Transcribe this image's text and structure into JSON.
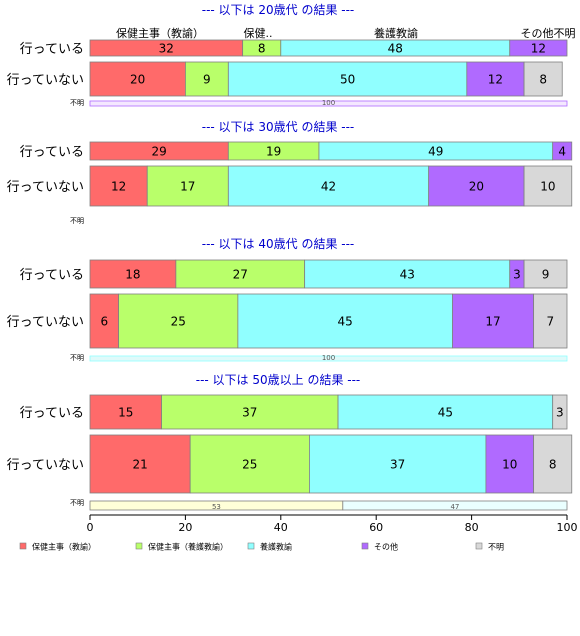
{
  "chart_data": {
    "type": "bar",
    "orientation": "horizontal-stacked-percent",
    "xlim": [
      0,
      100
    ],
    "x_ticks": [
      "0",
      "20",
      "40",
      "60",
      "80",
      "100"
    ],
    "colors": {
      "kenko_kyoyu": "#ff6a6a",
      "kenko_yogo": "#b9ff6a",
      "yogo": "#90ffff",
      "sonota": "#b06aff",
      "fumei": "#d8d8d8",
      "unknown_bar1": "#f4e8ff",
      "unknown_bar2": "#dffafa",
      "unknown_bar3a": "#ffffd8",
      "unknown_bar3b": "#eaffff",
      "title": "#0000cc",
      "edge": "#808080"
    },
    "legend": {
      "placement": "bottom",
      "items": [
        {
          "key": "kenko_kyoyu",
          "label": "保健主事（教諭）"
        },
        {
          "key": "kenko_yogo",
          "label": "保健主事（養護教諭）"
        },
        {
          "key": "yogo",
          "label": "養護教諭"
        },
        {
          "key": "sonota",
          "label": "その他"
        },
        {
          "key": "fumei",
          "label": "不明"
        }
      ]
    },
    "top_labels": [
      "保健主事（教諭）",
      "保健..",
      "養護教諭",
      "その他不明"
    ],
    "panels": [
      {
        "title": "--- 以下は 20歳代 の結果 ---",
        "rows": [
          {
            "label": "行っている",
            "values": [
              32,
              8,
              48,
              12,
              0
            ],
            "labels": [
              "32",
              "8",
              "48",
              "12",
              ""
            ]
          },
          {
            "label": "行っていない",
            "values": [
              20,
              9,
              50,
              12,
              8
            ],
            "labels": [
              "20",
              "9",
              "50",
              "12",
              "8"
            ]
          }
        ],
        "unknown": {
          "label": "不明",
          "segments": [
            {
              "value": 100,
              "label": "100",
              "color": "unknown_bar1",
              "border": "sonota"
            }
          ]
        }
      },
      {
        "title": "--- 以下は 30歳代 の結果 ---",
        "rows": [
          {
            "label": "行っている",
            "values": [
              29,
              19,
              49,
              4,
              0
            ],
            "labels": [
              "29",
              "19",
              "49",
              "4",
              ""
            ]
          },
          {
            "label": "行っていない",
            "values": [
              12,
              17,
              42,
              20,
              10
            ],
            "labels": [
              "12",
              "17",
              "42",
              "20",
              "10"
            ]
          }
        ],
        "unknown": {
          "label": "不明",
          "segments": []
        }
      },
      {
        "title": "--- 以下は 40歳代 の結果 ---",
        "rows": [
          {
            "label": "行っている",
            "values": [
              18,
              27,
              43,
              3,
              9
            ],
            "labels": [
              "18",
              "27",
              "43",
              "3",
              "9"
            ]
          },
          {
            "label": "行っていない",
            "values": [
              6,
              25,
              45,
              17,
              7
            ],
            "labels": [
              "6",
              "25",
              "45",
              "17",
              "7"
            ]
          }
        ],
        "unknown": {
          "label": "不明",
          "segments": [
            {
              "value": 100,
              "label": "100",
              "color": "unknown_bar2",
              "border": "yogo"
            }
          ]
        }
      },
      {
        "title": "--- 以下は 50歳以上 の結果 ---",
        "rows": [
          {
            "label": "行っている",
            "values": [
              15,
              37,
              45,
              0,
              3
            ],
            "labels": [
              "15",
              "37",
              "45",
              "",
              "3"
            ]
          },
          {
            "label": "行っていない",
            "values": [
              21,
              25,
              37,
              10,
              8
            ],
            "labels": [
              "21",
              "25",
              "37",
              "10",
              "8"
            ]
          }
        ],
        "unknown": {
          "label": "不明",
          "segments": [
            {
              "value": 53,
              "label": "53",
              "color": "unknown_bar3a",
              "border": "edge"
            },
            {
              "value": 47,
              "label": "47",
              "color": "unknown_bar3b",
              "border": "edge"
            }
          ]
        }
      }
    ]
  }
}
